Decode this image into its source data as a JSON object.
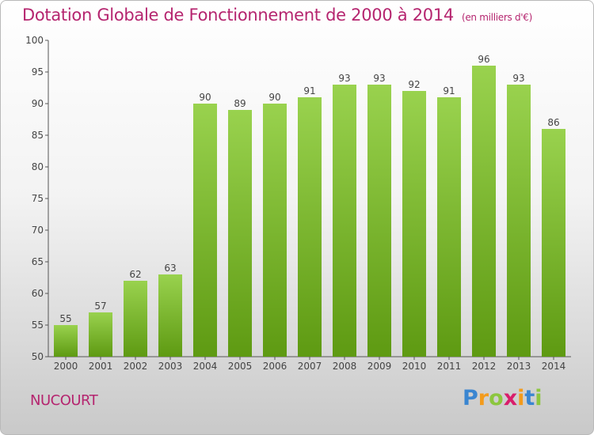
{
  "title": "Dotation Globale de Fonctionnement de 2000 à 2014",
  "unit": "(en milliers d'€)",
  "place": "NUCOURT",
  "logo": {
    "letters": [
      {
        "ch": "P",
        "color": "#3a86d1"
      },
      {
        "ch": "r",
        "color": "#f39b1c"
      },
      {
        "ch": "o",
        "color": "#8cc63e"
      },
      {
        "ch": "x",
        "color": "#d91d6b"
      },
      {
        "ch": "i",
        "color": "#f39b1c"
      },
      {
        "ch": "t",
        "color": "#3a86d1"
      },
      {
        "ch": "i",
        "color": "#8cc63e"
      }
    ]
  },
  "colors": {
    "bar_top": "#99d24e",
    "bar_bottom": "#5e9a12",
    "text": "#b5256f",
    "axis": "#555555"
  },
  "chart_data": {
    "type": "bar",
    "categories": [
      "2000",
      "2001",
      "2002",
      "2003",
      "2004",
      "2005",
      "2006",
      "2007",
      "2008",
      "2009",
      "2010",
      "2011",
      "2012",
      "2013",
      "2014"
    ],
    "values": [
      55,
      57,
      62,
      63,
      90,
      89,
      90,
      91,
      93,
      93,
      92,
      91,
      96,
      93,
      86
    ],
    "ylim": [
      50,
      100
    ],
    "yticks": [
      50,
      55,
      60,
      65,
      70,
      75,
      80,
      85,
      90,
      95,
      100
    ],
    "grid": false,
    "legend": "none"
  }
}
